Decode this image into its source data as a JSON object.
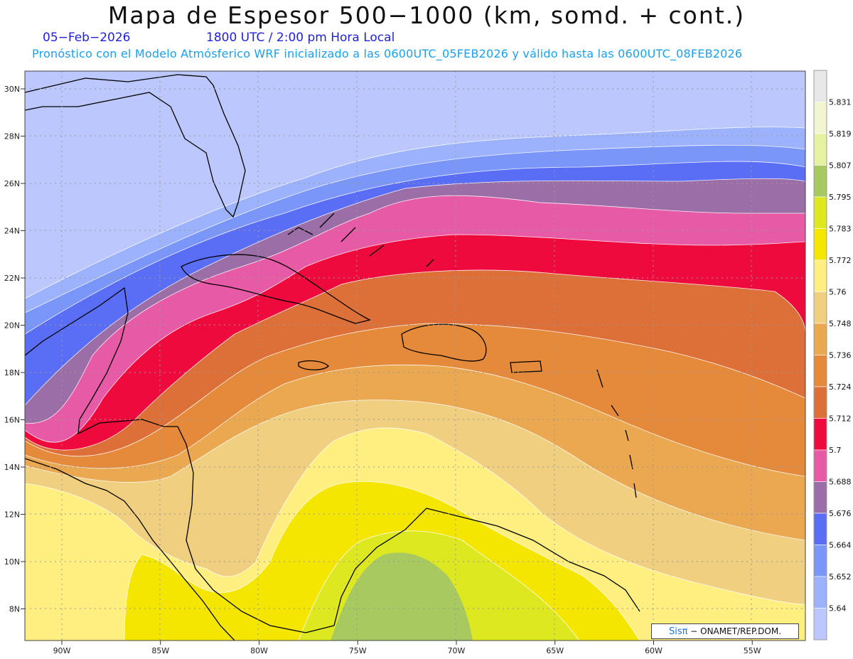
{
  "header": {
    "title": "Mapa de Espesor 500−1000 (km, somd. + cont.)",
    "date": "05−Feb−2026",
    "time": "1800 UTC / 2:00 pm Hora Local",
    "subtitle": "Pronóstico con el Modelo Atmósferico WRF inicializado a las 0600UTC_05FEB2026 y válido hasta las  0600UTC_08FEB2026"
  },
  "axes": {
    "lat_labels": [
      "30N",
      "28N",
      "26N",
      "24N",
      "22N",
      "20N",
      "18N",
      "16N",
      "14N",
      "12N",
      "10N",
      "8N"
    ],
    "lat_values": [
      30,
      28,
      26,
      24,
      22,
      20,
      18,
      16,
      14,
      12,
      10,
      8
    ],
    "lon_labels": [
      "90W",
      "85W",
      "80W",
      "75W",
      "70W",
      "65W",
      "60W",
      "55W"
    ],
    "lon_values": [
      -90,
      -85,
      -80,
      -75,
      -70,
      -65,
      -60,
      -55
    ]
  },
  "colorbar": {
    "labels": [
      "5.831",
      "5.819",
      "5.807",
      "5.795",
      "5.783",
      "5.772",
      "5.76",
      "5.748",
      "5.736",
      "5.724",
      "5.712",
      "5.7",
      "5.688",
      "5.676",
      "5.664",
      "5.652",
      "5.64"
    ],
    "colors": [
      "#e8e8e8",
      "#f2f5d0",
      "#e6f2a0",
      "#a8c860",
      "#dde820",
      "#f5e600",
      "#ffee80",
      "#f0d080",
      "#eaa850",
      "#e48a3a",
      "#dc7038",
      "#ee0a3c",
      "#e65aa6",
      "#9c6ea8",
      "#5a6ef5",
      "#7a96f8",
      "#9cb2fc",
      "#bcc8fd"
    ]
  },
  "credit": {
    "logo": "Sisπ",
    "text": "− ONAMET/REP.DOM."
  }
}
